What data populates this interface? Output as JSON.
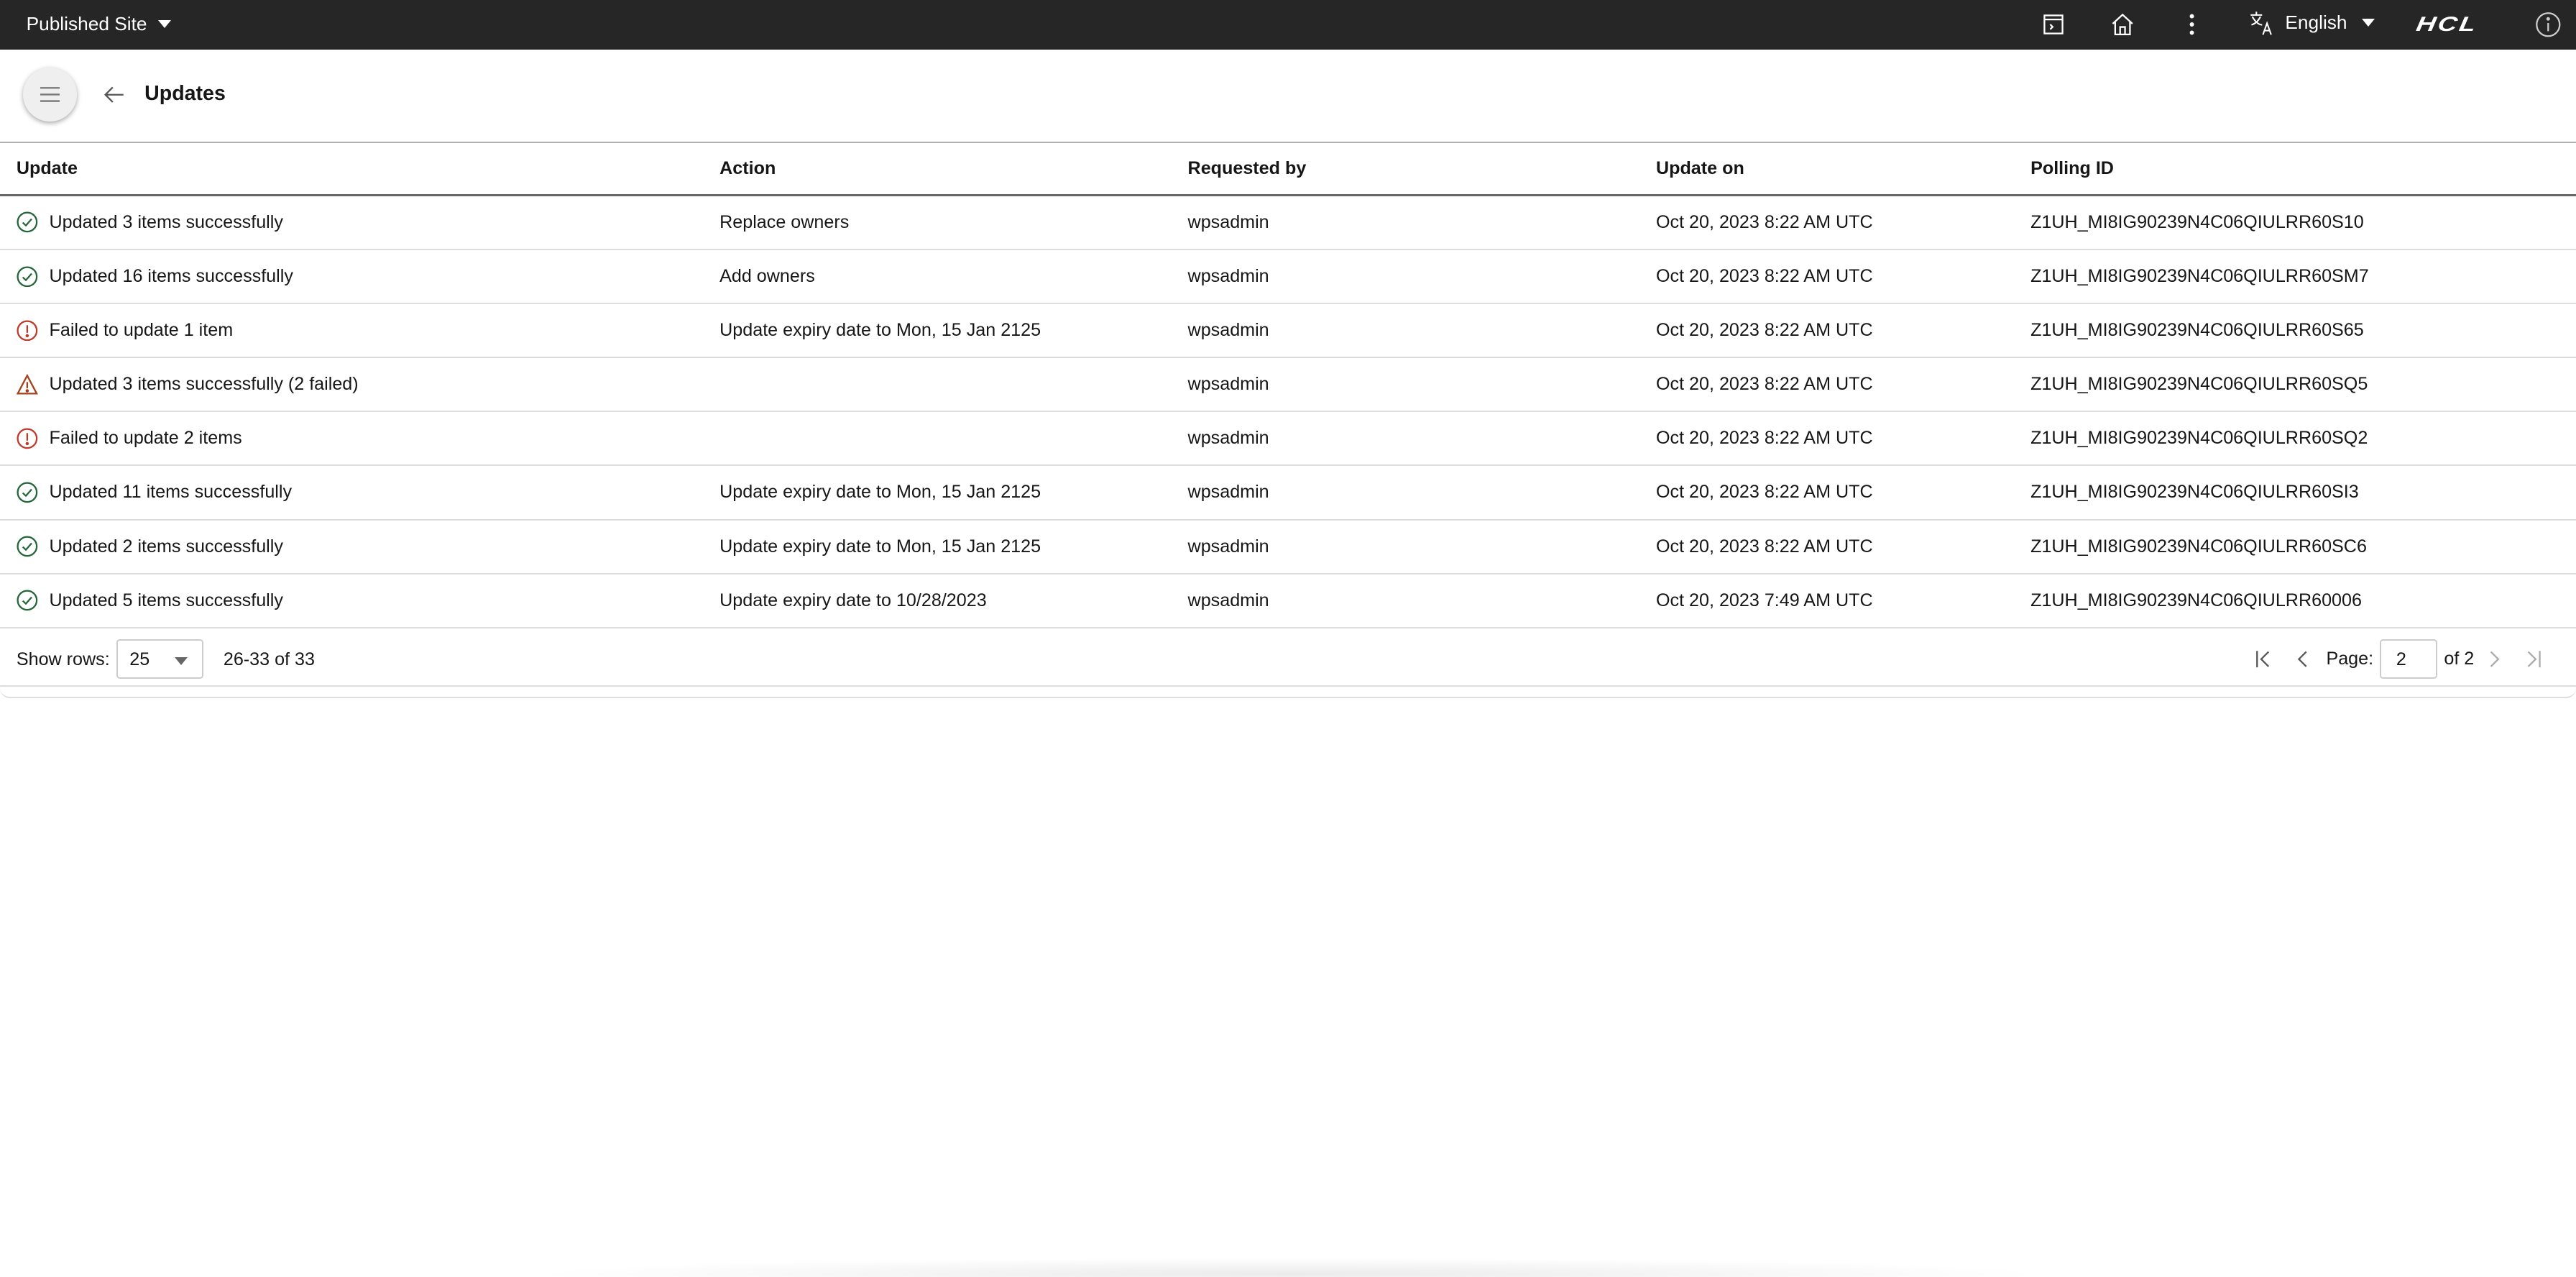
{
  "topbar": {
    "site_selector": "Published Site",
    "icons": [
      "preview-icon",
      "home-icon",
      "more-vertical-icon",
      "translate-icon",
      "info-icon"
    ],
    "language": "English",
    "logo": "HCL",
    "background": "#262626"
  },
  "header": {
    "title": "Updates"
  },
  "table": {
    "columns": [
      "Update",
      "Action",
      "Requested by",
      "Update on",
      "Polling ID"
    ],
    "rows": [
      {
        "status": "success",
        "update": "Updated 3 items successfully",
        "action": "Replace owners",
        "requested_by": "wpsadmin",
        "update_on": "Oct 20, 2023 8:22 AM UTC",
        "polling_id": "Z1UH_MI8IG90239N4C06QIULRR60S10"
      },
      {
        "status": "success",
        "update": "Updated 16 items successfully",
        "action": "Add owners",
        "requested_by": "wpsadmin",
        "update_on": "Oct 20, 2023 8:22 AM UTC",
        "polling_id": "Z1UH_MI8IG90239N4C06QIULRR60SM7"
      },
      {
        "status": "error",
        "update": "Failed to update 1 item",
        "action": "Update expiry date to Mon, 15 Jan 2125",
        "requested_by": "wpsadmin",
        "update_on": "Oct 20, 2023 8:22 AM UTC",
        "polling_id": "Z1UH_MI8IG90239N4C06QIULRR60S65"
      },
      {
        "status": "warning",
        "update": "Updated 3 items successfully (2 failed)",
        "action": "",
        "requested_by": "wpsadmin",
        "update_on": "Oct 20, 2023 8:22 AM UTC",
        "polling_id": "Z1UH_MI8IG90239N4C06QIULRR60SQ5"
      },
      {
        "status": "error",
        "update": "Failed to update 2 items",
        "action": "",
        "requested_by": "wpsadmin",
        "update_on": "Oct 20, 2023 8:22 AM UTC",
        "polling_id": "Z1UH_MI8IG90239N4C06QIULRR60SQ2"
      },
      {
        "status": "success",
        "update": "Updated 11 items successfully",
        "action": "Update expiry date to Mon, 15 Jan 2125",
        "requested_by": "wpsadmin",
        "update_on": "Oct 20, 2023 8:22 AM UTC",
        "polling_id": "Z1UH_MI8IG90239N4C06QIULRR60SI3"
      },
      {
        "status": "success",
        "update": "Updated 2 items successfully",
        "action": "Update expiry date to Mon, 15 Jan 2125",
        "requested_by": "wpsadmin",
        "update_on": "Oct 20, 2023 8:22 AM UTC",
        "polling_id": "Z1UH_MI8IG90239N4C06QIULRR60SC6"
      },
      {
        "status": "success",
        "update": "Updated 5 items successfully",
        "action": "Update expiry date to 10/28/2023",
        "requested_by": "wpsadmin",
        "update_on": "Oct 20, 2023 7:49 AM UTC",
        "polling_id": "Z1UH_MI8IG90239N4C06QIULRR60006"
      }
    ]
  },
  "status_colors": {
    "success": "#24653a",
    "error": "#c0392b",
    "warning": "#a5401c"
  },
  "pagination": {
    "show_rows_label": "Show rows:",
    "rows_per_page": "25",
    "range": "26-33 of 33",
    "page_label": "Page:",
    "page": "2",
    "of_pages": "of 2"
  }
}
